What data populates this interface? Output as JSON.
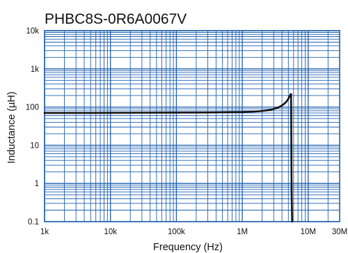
{
  "chart_data": {
    "type": "line",
    "title": "PHBC8S-0R6A0067V",
    "xlabel": "Frequency (Hz)",
    "ylabel": "Inductance (µH)",
    "xscale": "log",
    "yscale": "log",
    "xlim": [
      1000,
      30000000
    ],
    "ylim": [
      0.1,
      10000
    ],
    "x_ticks": [
      {
        "value": 1000,
        "label": "1k"
      },
      {
        "value": 10000,
        "label": "10k"
      },
      {
        "value": 100000,
        "label": "100k"
      },
      {
        "value": 1000000,
        "label": "1M"
      },
      {
        "value": 10000000,
        "label": "10M"
      },
      {
        "value": 30000000,
        "label": "30M"
      }
    ],
    "y_ticks": [
      {
        "value": 10000,
        "label": "10k"
      },
      {
        "value": 1000,
        "label": "1k"
      },
      {
        "value": 100,
        "label": "100"
      },
      {
        "value": 10,
        "label": "10"
      },
      {
        "value": 1,
        "label": "1"
      },
      {
        "value": 0.1,
        "label": "0.1"
      }
    ],
    "grid": true,
    "legend": "none",
    "colors": {
      "grid": "#1f5fae",
      "line": "#111111"
    },
    "series": [
      {
        "x": [
          1000,
          3000,
          10000,
          30000,
          100000,
          300000,
          1000000,
          1500000,
          2000000,
          2500000,
          3000000,
          3500000,
          4000000,
          4400000,
          4700000,
          5000000,
          5200000,
          5400000,
          5500000,
          5600000,
          5700000
        ],
        "y": [
          70,
          70,
          70.5,
          71,
          71.5,
          72,
          74,
          76,
          79,
          83,
          89,
          97,
          110,
          125,
          140,
          165,
          190,
          215,
          220,
          0.6,
          0.1
        ]
      }
    ]
  }
}
